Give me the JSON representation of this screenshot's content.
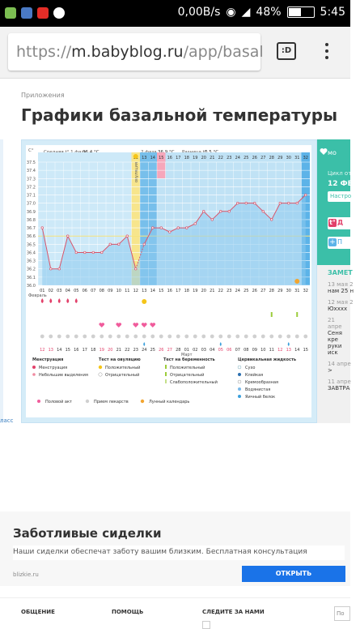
{
  "status": {
    "speed": "0,00B/s",
    "battery": "48%",
    "time": "5:45"
  },
  "browser": {
    "url_prefix": "https://",
    "url_host": "m.babyblog.ru",
    "url_path": "/app/basal",
    "tab_label": ":D"
  },
  "page": {
    "breadcrumb": "Приложения",
    "title": "Графики базальной температуры"
  },
  "chart": {
    "axis_unit": "C°",
    "phase1_label": "Средняя t° 1 фаза",
    "phase1_value": "36.4 °C",
    "phase2_label": "2 фаза",
    "phase2_value": "36.9 °C",
    "diff_label": "Разница t°",
    "diff_value": "0.5 °C",
    "ovulation_label": "овуляция",
    "month_feb": "Февраль",
    "month_mar": "Март",
    "legend": {
      "menstruation_h": "Менструация",
      "menstruation": "Менструация",
      "spotting": "Небольшие выделения",
      "ov_test_h": "Тест на овуляцию",
      "ov_pos": "Положительный",
      "ov_neg": "Отрицательный",
      "preg_test_h": "Тест на беременность",
      "preg_pos": "Положительный",
      "preg_neg": "Отрицательный",
      "preg_weak": "Слабоположительный",
      "cervical_h": "Цервикальная жидкость",
      "dry": "Сухо",
      "sticky": "Клейкая",
      "creamy": "Кремообразная",
      "watery": "Водянистая",
      "eggwhite": "Яичный белок",
      "intercourse": "Половой акт",
      "meds": "Прием лекарств",
      "lunar": "Лунный календарь"
    }
  },
  "chart_data": {
    "type": "line",
    "title": "",
    "y_ticks": [
      "37.5",
      "37.4",
      "37.3",
      "37.2",
      "37.1",
      "37.0",
      "36.9",
      "36.8",
      "36.7",
      "36.6",
      "36.5",
      "36.4",
      "36.3",
      "36.2",
      "36.1",
      "36.0"
    ],
    "ylim": [
      36.0,
      37.5
    ],
    "x_cycle_days": [
      "01",
      "02",
      "03",
      "04",
      "05",
      "06",
      "07",
      "08",
      "09",
      "10",
      "11",
      "12",
      "13",
      "14",
      "15",
      "16",
      "17",
      "18",
      "19",
      "20",
      "21",
      "22",
      "23",
      "24",
      "25",
      "26",
      "27",
      "28",
      "29",
      "30",
      "31",
      "32"
    ],
    "x_dates": [
      "12",
      "13",
      "14",
      "15",
      "16",
      "17",
      "18",
      "19",
      "20",
      "21",
      "22",
      "23",
      "24",
      "25",
      "26",
      "27",
      "28",
      "01",
      "02",
      "03",
      "04",
      "05",
      "06",
      "07",
      "08",
      "09",
      "10",
      "11",
      "12",
      "13",
      "14",
      "15"
    ],
    "date_weekend": [
      true,
      true,
      false,
      false,
      false,
      false,
      false,
      true,
      true,
      false,
      false,
      false,
      false,
      false,
      true,
      true,
      false,
      false,
      false,
      false,
      false,
      true,
      true,
      false,
      false,
      false,
      false,
      false,
      true,
      true,
      false,
      false
    ],
    "series": [
      {
        "values": [
          36.7,
          36.2,
          36.2,
          36.6,
          36.4,
          36.4,
          36.4,
          36.4,
          36.5,
          36.5,
          36.6,
          36.2,
          36.5,
          36.7,
          36.7,
          36.65,
          36.7,
          36.7,
          36.75,
          36.9,
          36.8,
          36.9,
          36.9,
          37.0,
          37.0,
          37.0,
          36.9,
          36.8,
          37.0,
          37.0,
          37.0,
          37.1
        ]
      }
    ],
    "segment_breaks": [
      12
    ],
    "coverline": 36.6,
    "ovulation_day": 12,
    "top_phase_row": [
      "",
      "",
      "",
      "",
      "",
      "",
      "",
      "",
      "",
      "",
      "",
      "",
      "",
      "",
      "",
      "",
      "",
      "",
      "",
      "",
      "",
      "",
      "",
      "",
      "",
      "",
      "",
      "",
      "",
      "",
      "",
      ""
    ],
    "fertile_days_highlighted": [
      "15"
    ],
    "menstruation_days": [
      1,
      2,
      3,
      4,
      5
    ],
    "intercourse_days": [
      8,
      10,
      12,
      13,
      14
    ],
    "lunar_days": [
      31
    ]
  },
  "right_panel": {
    "favorite": "мо",
    "cycle_label": "Цикл от",
    "cycle_date": "12 ФЕ",
    "settings_btn": "Настро",
    "pill1": "Д",
    "pill1_icon": "t°",
    "pill2": "П",
    "pill2_icon": "+",
    "notes_header": "ЗАМЕТ",
    "notes": [
      {
        "date": "13 мая 2",
        "text": "нам 25 н"
      },
      {
        "date": "12 мая 2",
        "text": "Юхххх"
      },
      {
        "date": "21 апре",
        "text": "Сеня кре руки иск"
      },
      {
        "date": "14 апре",
        "text": ">"
      },
      {
        "date": "11 апре",
        "text": "ЗАВТРА"
      }
    ]
  },
  "left_link": "ласс",
  "ad": {
    "title": "Заботливые сиделки",
    "subtitle": "Наши сиделки обеспечат заботу вашим близким. Бесплатная консультация",
    "domain": "blizkie.ru",
    "button": "ОТКРЫТЬ"
  },
  "footer": {
    "c1": "ОБЩЕНИЕ",
    "c2": "ПОМОЩЬ",
    "c3": "СЛЕДИТЕ ЗА НАМИ",
    "c4": "По"
  },
  "colors": {
    "accent": "#3bbfa8",
    "chart_blue": "#5cb3e8",
    "chart_bg": "#cde9f8",
    "ovulation": "#f7e58c",
    "pink": "#e2406a",
    "line": "#d9556a",
    "coverline": "#f5e37a"
  }
}
